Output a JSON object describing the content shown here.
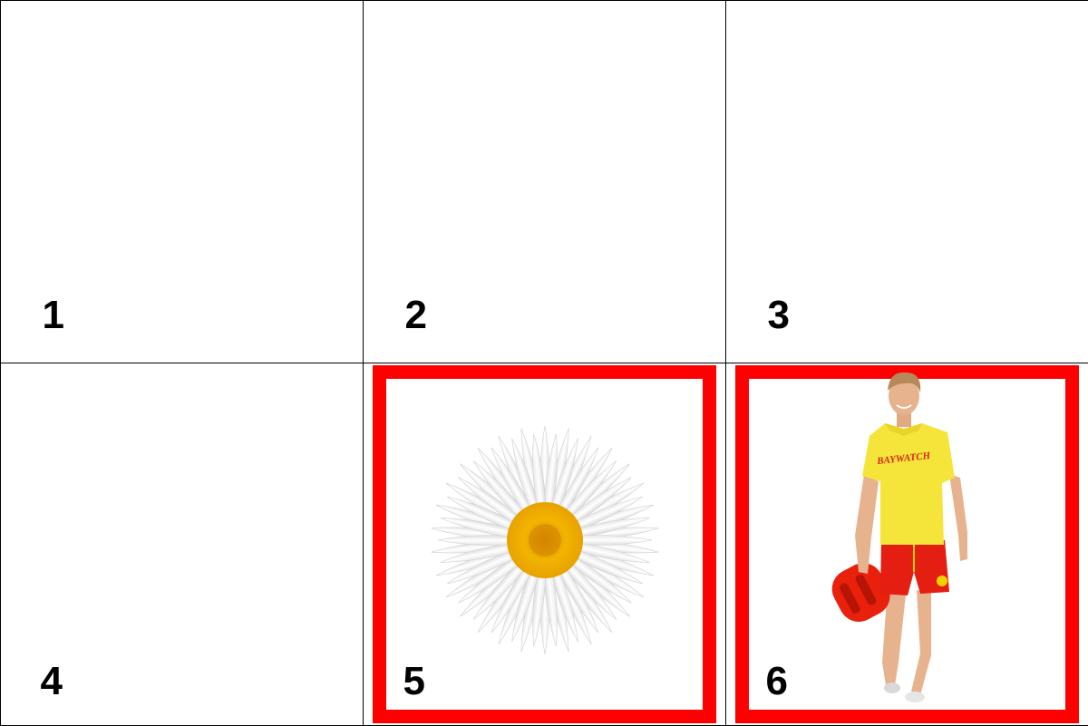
{
  "grid": {
    "columns": 3,
    "rows": 2,
    "selection_color": "#ff0000",
    "cells": [
      {
        "label": "1",
        "content": "empty",
        "selected": false
      },
      {
        "label": "2",
        "content": "empty",
        "selected": false
      },
      {
        "label": "3",
        "content": "empty",
        "selected": false
      },
      {
        "label": "4",
        "content": "empty",
        "selected": false
      },
      {
        "label": "5",
        "content": "daisy-image",
        "selected": true
      },
      {
        "label": "6",
        "content": "lifeguard-image",
        "selected": true
      }
    ]
  },
  "lifeguard": {
    "shirt_text": "BAYWATCH"
  }
}
